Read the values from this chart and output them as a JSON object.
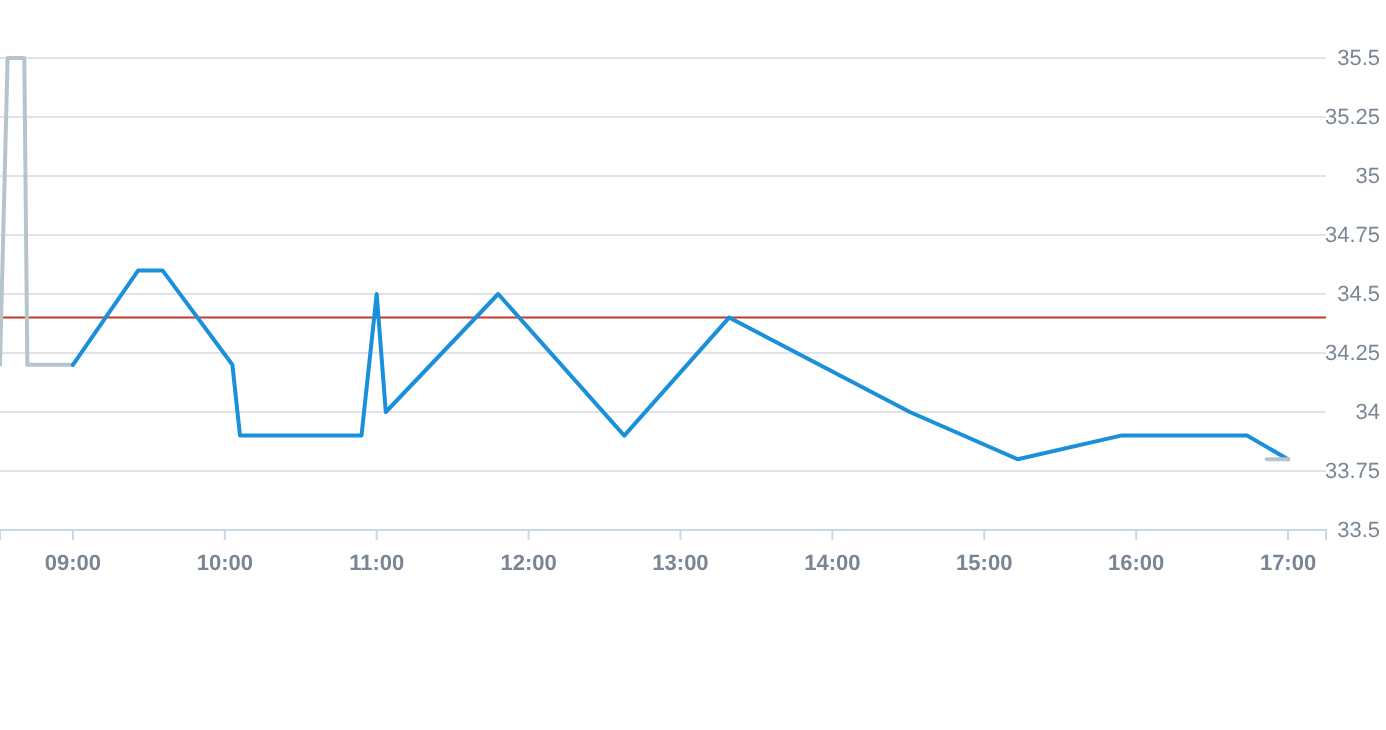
{
  "chart_data": {
    "type": "line",
    "xlim": [
      8.52,
      17.25
    ],
    "ylim": [
      33.5,
      35.5
    ],
    "xticks": [
      {
        "value": 9,
        "label": "09:00"
      },
      {
        "value": 10,
        "label": "10:00"
      },
      {
        "value": 11,
        "label": "11:00"
      },
      {
        "value": 12,
        "label": "12:00"
      },
      {
        "value": 13,
        "label": "13:00"
      },
      {
        "value": 14,
        "label": "14:00"
      },
      {
        "value": 15,
        "label": "15:00"
      },
      {
        "value": 16,
        "label": "16:00"
      },
      {
        "value": 17,
        "label": "17:00"
      }
    ],
    "yticks": [
      33.5,
      33.75,
      34,
      34.25,
      34.5,
      34.75,
      35,
      35.25,
      35.5
    ],
    "grid": "y",
    "marker": "none",
    "line_style": "solid",
    "series": [
      {
        "color": "#b8c4cc",
        "x": [
          8.52,
          8.57,
          8.68,
          8.7,
          9.0
        ],
        "values": [
          34.2,
          35.5,
          35.5,
          34.2,
          34.2
        ]
      },
      {
        "color": "#1a90db",
        "x": [
          9.0,
          9.43,
          9.59,
          10.05,
          10.1,
          10.9,
          11.0,
          11.06,
          11.8,
          12.63,
          13.32,
          14.51,
          15.22,
          15.9,
          16.73,
          17.0
        ],
        "values": [
          34.2,
          34.6,
          34.6,
          34.2,
          33.9,
          33.9,
          34.5,
          34.0,
          34.5,
          33.9,
          34.4,
          34.0,
          33.8,
          33.9,
          33.9,
          33.8
        ]
      },
      {
        "color": "#b8c4cc",
        "x": [
          16.86,
          17.0
        ],
        "values": [
          33.8,
          33.8
        ]
      }
    ],
    "ref_lines": [
      {
        "axis": "y",
        "value": 34.4,
        "color": "#c0392b"
      }
    ]
  }
}
